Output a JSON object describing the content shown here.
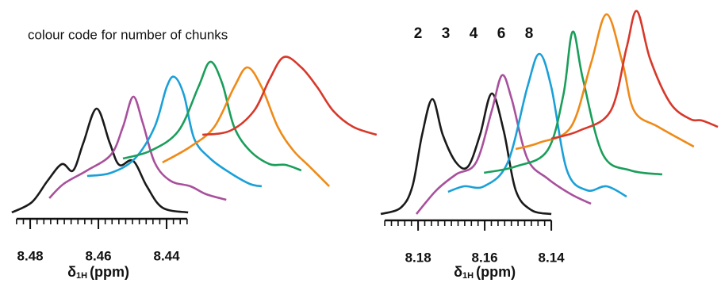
{
  "legend": {
    "title": "colour code for number of chunks"
  },
  "chart_data": [
    {
      "type": "line",
      "x_label": {
        "symbol": "δ",
        "subscript": "1H",
        "unit": "(ppm)"
      },
      "xlim": [
        8.4877,
        8.3772
      ],
      "ylim": [
        0,
        268
      ],
      "xticks": [
        8.48,
        8.46,
        8.44
      ],
      "xticks_minor": [
        8.484,
        8.482,
        8.48,
        8.478,
        8.476,
        8.474,
        8.472,
        8.47,
        8.468,
        8.466,
        8.464,
        8.462,
        8.46,
        8.458,
        8.456,
        8.454,
        8.452,
        8.45,
        8.448,
        8.446,
        8.444,
        8.442,
        8.44,
        8.438,
        8.436,
        8.434
      ],
      "series": [
        {
          "color": "#1a1a1a",
          "x": [
            8.4854,
            8.4795,
            8.4749,
            8.4707,
            8.4674,
            8.4644,
            8.4605,
            8.4567,
            8.4539,
            8.4498,
            8.4458,
            8.4412,
            8.4337
          ],
          "values": [
            0,
            13,
            40,
            61,
            53,
            88,
            131,
            88,
            60,
            65,
            33,
            6,
            0
          ]
        },
        {
          "name": "2",
          "color": "#a8509c",
          "x": [
            8.4744,
            8.4702,
            8.4633,
            8.4563,
            8.4528,
            8.4498,
            8.447,
            8.4435,
            8.4389,
            8.433,
            8.4284,
            8.4225
          ],
          "values": [
            18,
            36,
            53,
            73,
            108,
            146,
            113,
            63,
            40,
            33,
            23,
            16
          ]
        },
        {
          "name": "3",
          "color": "#1aa0d8",
          "x": [
            8.4633,
            8.4563,
            8.4493,
            8.4435,
            8.44,
            8.4377,
            8.4349,
            8.4319,
            8.4272,
            8.4214,
            8.4156,
            8.4121
          ],
          "values": [
            46,
            50,
            68,
            108,
            158,
            171,
            148,
            93,
            68,
            50,
            36,
            33
          ]
        },
        {
          "name": "4",
          "color": "#1a9e5a",
          "x": [
            8.4528,
            8.4446,
            8.4365,
            8.4307,
            8.4272,
            8.4237,
            8.4202,
            8.4156,
            8.4098,
            8.4051,
            8.4005
          ],
          "values": [
            68,
            78,
            103,
            158,
            190,
            163,
            108,
            78,
            61,
            60,
            53
          ]
        },
        {
          "name": "6",
          "color": "#ef8a17",
          "x": [
            8.4412,
            8.433,
            8.426,
            8.4202,
            8.4163,
            8.4121,
            8.4074,
            8.4028,
            8.3981,
            8.3923
          ],
          "values": [
            63,
            83,
            108,
            158,
            183,
            158,
            108,
            78,
            58,
            33
          ]
        },
        {
          "name": "8",
          "color": "#d7382a",
          "x": [
            8.4295,
            8.4214,
            8.4144,
            8.4098,
            8.4056,
            8.4005,
            8.3958,
            8.3911,
            8.3853,
            8.3784
          ],
          "values": [
            98,
            103,
            128,
            168,
            196,
            183,
            158,
            128,
            108,
            98
          ]
        }
      ]
    },
    {
      "type": "line",
      "x_label": {
        "symbol": "δ",
        "subscript": "1H",
        "unit": "(ppm)"
      },
      "xlim": [
        8.1936,
        8.0893
      ],
      "ylim": [
        0,
        268
      ],
      "xticks": [
        8.18,
        8.16,
        8.14
      ],
      "xticks_minor": [
        8.19,
        8.188,
        8.186,
        8.184,
        8.182,
        8.18,
        8.178,
        8.176,
        8.174,
        8.172,
        8.17,
        8.168,
        8.166,
        8.164,
        8.162,
        8.16,
        8.158,
        8.156,
        8.154,
        8.152,
        8.15,
        8.148,
        8.146,
        8.144,
        8.142,
        8.14
      ],
      "series": [
        {
          "color": "#1a1a1a",
          "x": [
            8.1912,
            8.1852,
            8.1817,
            8.1788,
            8.1757,
            8.1726,
            8.1686,
            8.165,
            8.1614,
            8.1579,
            8.1543,
            8.1507,
            8.146,
            8.14
          ],
          "values": [
            0,
            8,
            35,
            100,
            145,
            100,
            65,
            60,
            100,
            152,
            105,
            30,
            5,
            0
          ]
        },
        {
          "name": "2",
          "color": "#a8509c",
          "x": [
            8.1805,
            8.1745,
            8.1686,
            8.1626,
            8.1579,
            8.1548,
            8.1519,
            8.1472,
            8.1412,
            8.1341,
            8.1281
          ],
          "values": [
            0,
            30,
            50,
            65,
            130,
            175,
            145,
            70,
            45,
            25,
            13
          ]
        },
        {
          "name": "3",
          "color": "#1aa0d8",
          "x": [
            8.171,
            8.1662,
            8.1602,
            8.1531,
            8.1472,
            8.1436,
            8.14,
            8.1353,
            8.1293,
            8.1234,
            8.1174
          ],
          "values": [
            28,
            35,
            35,
            65,
            160,
            202,
            160,
            55,
            30,
            35,
            22
          ]
        },
        {
          "name": "4",
          "color": "#1a9e5a",
          "x": [
            8.1602,
            8.1507,
            8.1412,
            8.1364,
            8.1336,
            8.1305,
            8.1245,
            8.1162,
            8.1067
          ],
          "values": [
            52,
            60,
            80,
            150,
            230,
            170,
            75,
            55,
            50
          ]
        },
        {
          "name": "6",
          "color": "#ef8a17",
          "x": [
            8.1507,
            8.1436,
            8.1341,
            8.1281,
            8.1234,
            8.1186,
            8.1151,
            8.1079,
            8.0972
          ],
          "values": [
            82,
            90,
            110,
            190,
            252,
            190,
            130,
            110,
            85
          ]
        },
        {
          "name": "8",
          "color": "#d7382a",
          "x": [
            8.14,
            8.1317,
            8.1222,
            8.1174,
            8.1143,
            8.1103,
            8.1043,
            8.0984,
            8.0948,
            8.09
          ],
          "values": [
            95,
            105,
            130,
            210,
            256,
            195,
            140,
            120,
            118,
            110
          ]
        }
      ]
    }
  ]
}
